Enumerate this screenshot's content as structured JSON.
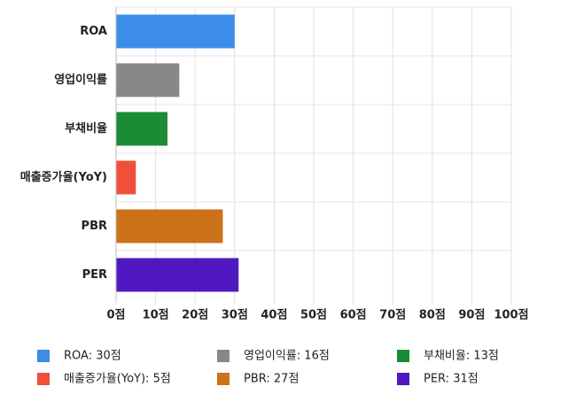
{
  "chart_data": {
    "type": "bar",
    "orientation": "horizontal",
    "categories": [
      "ROA",
      "영업이익률",
      "부채비율",
      "매출증가율(YoY)",
      "PBR",
      "PER"
    ],
    "values": [
      30,
      16,
      13,
      5,
      27,
      31
    ],
    "colors": [
      "#3b8de8",
      "#888888",
      "#1a8c35",
      "#f0503a",
      "#cc7218",
      "#5018c0"
    ],
    "legend_labels": [
      "ROA: 30점",
      "영업이익률: 16점",
      "부채비율: 13점",
      "매출증가율(YoY): 5점",
      "PBR: 27점",
      "PER: 31점"
    ],
    "xlim": [
      0,
      100
    ],
    "xticks": [
      {
        "value": 0,
        "label": "0점"
      },
      {
        "value": 10,
        "label": "10점"
      },
      {
        "value": 20,
        "label": "20점"
      },
      {
        "value": 30,
        "label": "30점"
      },
      {
        "value": 40,
        "label": "40점"
      },
      {
        "value": 50,
        "label": "50점"
      },
      {
        "value": 60,
        "label": "60점"
      },
      {
        "value": 70,
        "label": "70점"
      },
      {
        "value": 80,
        "label": "80점"
      },
      {
        "value": 90,
        "label": "90점"
      },
      {
        "value": 100,
        "label": "100점"
      }
    ],
    "grid": true
  }
}
